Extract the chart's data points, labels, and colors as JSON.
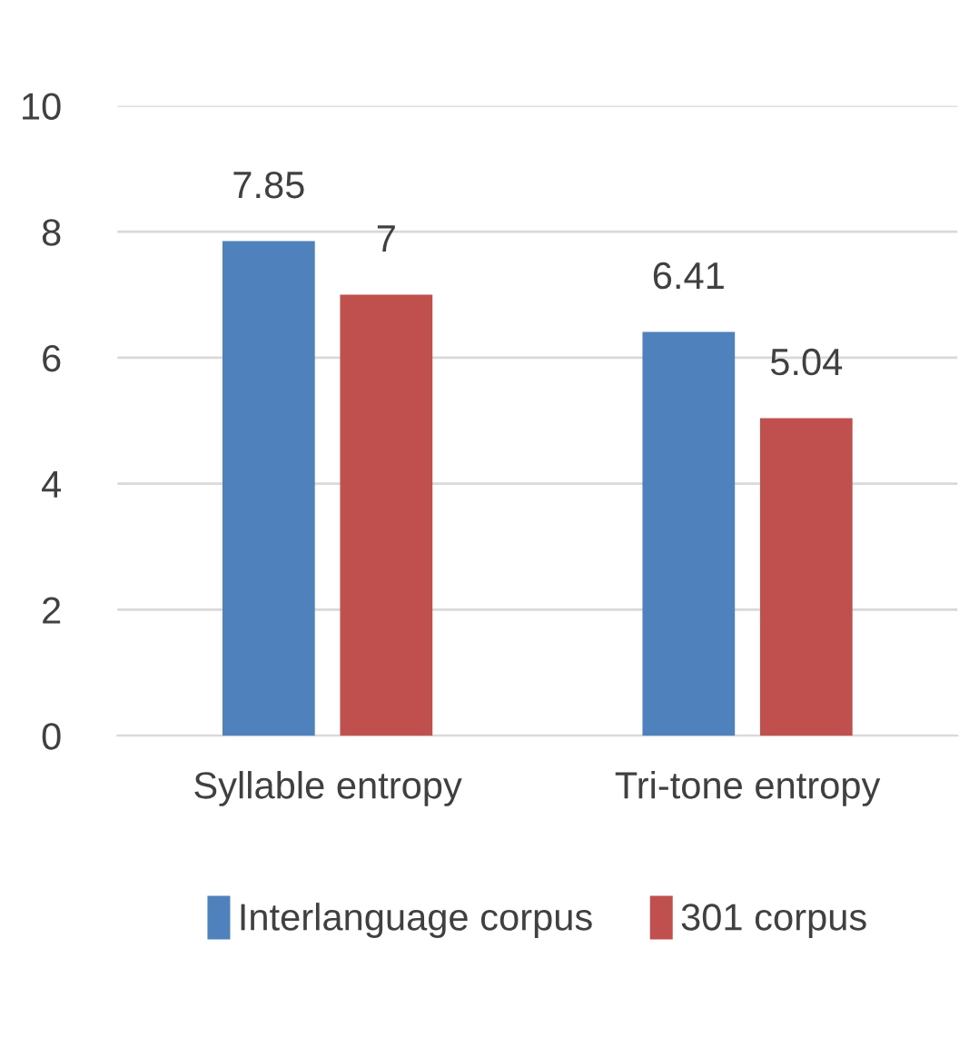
{
  "chart_data": {
    "type": "bar",
    "categories": [
      "Syllable entropy",
      "Tri-tone entropy"
    ],
    "series": [
      {
        "name": "Interlanguage corpus",
        "color": "#4f81bd",
        "values": [
          7.85,
          6.41
        ]
      },
      {
        "name": "301 corpus",
        "color": "#c0504d",
        "values": [
          7,
          5.04
        ]
      }
    ],
    "ylim": [
      0,
      10
    ],
    "yticks": [
      0,
      2,
      4,
      6,
      8,
      10
    ],
    "grid": "y",
    "legend": "bottom",
    "data_labels": true
  }
}
